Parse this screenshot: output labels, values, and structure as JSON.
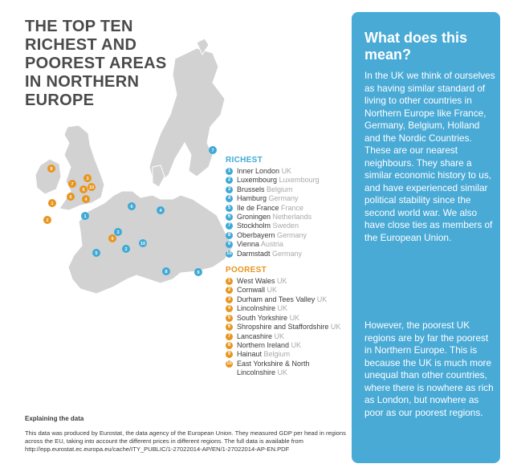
{
  "title_lines": [
    "THE TOP TEN",
    "RICHEST AND",
    "POOREST AREAS",
    "IN NORTHERN",
    "EUROPE"
  ],
  "richest": {
    "heading": "RICHEST",
    "items": [
      {
        "n": "1",
        "region": "Inner London",
        "country": "UK"
      },
      {
        "n": "2",
        "region": "Luxembourg",
        "country": "Luxembourg"
      },
      {
        "n": "3",
        "region": "Brussels",
        "country": "Belgium"
      },
      {
        "n": "4",
        "region": "Hamburg",
        "country": "Germany"
      },
      {
        "n": "5",
        "region": "Ile de France",
        "country": "France"
      },
      {
        "n": "6",
        "region": "Groningen",
        "country": "Netherlands"
      },
      {
        "n": "7",
        "region": "Stockholm",
        "country": "Sweden"
      },
      {
        "n": "8",
        "region": "Oberbayern",
        "country": "Germany"
      },
      {
        "n": "9",
        "region": "Vienna",
        "country": "Austria"
      },
      {
        "n": "10",
        "region": "Darmstadt",
        "country": "Germany"
      }
    ]
  },
  "poorest": {
    "heading": "POOREST",
    "items": [
      {
        "n": "1",
        "region": "West Wales",
        "country": "UK"
      },
      {
        "n": "2",
        "region": "Cornwall",
        "country": "UK"
      },
      {
        "n": "3",
        "region": "Durham and Tees Valley",
        "country": "UK"
      },
      {
        "n": "4",
        "region": "Lincolnshire",
        "country": "UK"
      },
      {
        "n": "5",
        "region": "South Yorkshire",
        "country": "UK"
      },
      {
        "n": "6",
        "region": "Shropshire and Staffordshire",
        "country": "UK"
      },
      {
        "n": "7",
        "region": "Lancashire",
        "country": "UK"
      },
      {
        "n": "8",
        "region": "Northern Ireland",
        "country": "UK"
      },
      {
        "n": "9",
        "region": "Hainaut",
        "country": "Belgium"
      },
      {
        "n": "10",
        "region": "East Yorkshire & North Lincolnshire",
        "country": "UK"
      }
    ]
  },
  "explain": {
    "heading": "Explaining the data",
    "body": "This data was produced by Eurostat, the data agency of the European Union. They measured GDP per head in regions across the EU, taking into account the different prices in different regions. The full data is available from http://epp.eurostat.ec.europa.eu/cache/ITY_PUBLIC/1-27022014-AP/EN/1-27022014-AP-EN.PDF"
  },
  "sidebar": {
    "heading": "What does this mean?",
    "p1": "In the UK we think of ourselves as having similar standard of living to other countries in Northern Europe like France, Germany, Belgium, Holland and the Nordic Countries. These are our nearest neighbours. They share a similar economic history to us, and have experienced similar political stability since the second world war. We also have close ties as members of the European Union.",
    "p2": "However, the poorest UK regions are by far the poorest in Northern Europe. This is because the UK is much more unequal than other countries, where there is nowhere as rich as London, but nowhere as poor as our poorest regions."
  },
  "map_markers": {
    "rich": [
      "1",
      "2",
      "3",
      "4",
      "5",
      "6",
      "7",
      "8",
      "9",
      "10"
    ],
    "poor": [
      "1",
      "2",
      "3",
      "4",
      "5",
      "6",
      "7",
      "8",
      "9",
      "10"
    ]
  },
  "colors": {
    "accent_blue": "#49aad6",
    "accent_orange": "#e8951e",
    "land": "#d2d2d2",
    "title": "#4a4a4a"
  }
}
